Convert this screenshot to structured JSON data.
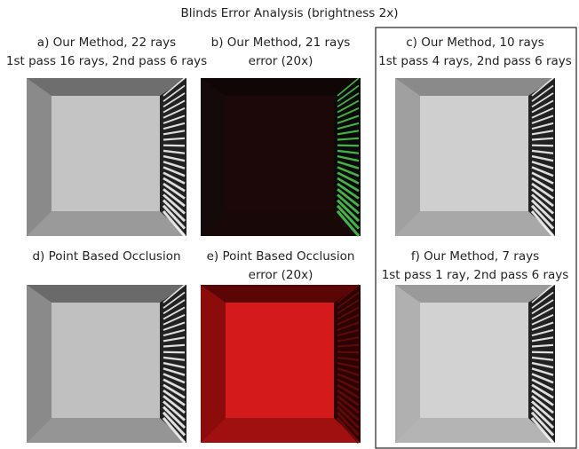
{
  "title": "Blinds Error Analysis (brightness 2x)",
  "panels": [
    {
      "caption": [
        "a) Our Method, 22 rays",
        "1st pass 16 rays, 2nd pass 6 rays"
      ]
    },
    {
      "caption": [
        "b) Our Method, 21 rays",
        "error (20x)"
      ]
    },
    {
      "caption": [
        "c) Our Method, 10 rays",
        "1st pass 4 rays, 2nd pass 6 rays"
      ]
    },
    {
      "caption": [
        "d) Point Based Occlusion"
      ]
    },
    {
      "caption": [
        "e) Point Based Occlusion",
        "error (20x)"
      ]
    },
    {
      "caption": [
        "f) Our Method, 7 rays",
        "1st pass 1 ray, 2nd pass 6 rays"
      ]
    }
  ]
}
